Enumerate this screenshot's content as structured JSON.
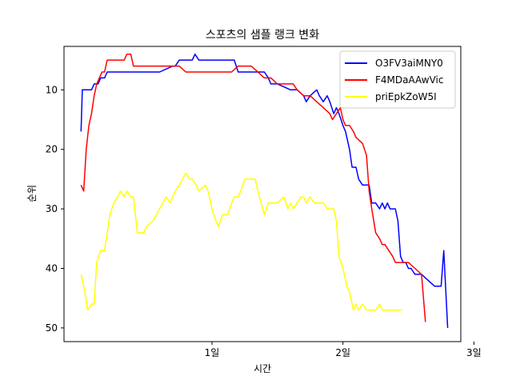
{
  "chart_data": {
    "type": "line",
    "title": "스포츠의 샘플 랭크 변화",
    "xlabel": "시간",
    "ylabel": "순위",
    "xlim": [
      -0.13,
      2.9
    ],
    "ylim": [
      52.3,
      2.7
    ],
    "y_inverted": true,
    "x_unit": "days",
    "x_ticks": [
      {
        "value": 1,
        "label": "1일"
      },
      {
        "value": 2,
        "label": "2일"
      },
      {
        "value": 3,
        "label": "3일"
      }
    ],
    "y_ticks": [
      {
        "value": 10,
        "label": "10"
      },
      {
        "value": 20,
        "label": "20"
      },
      {
        "value": 30,
        "label": "30"
      },
      {
        "value": 40,
        "label": "40"
      },
      {
        "value": 50,
        "label": "50"
      }
    ],
    "grid": false,
    "legend_position": "top-right",
    "series": [
      {
        "name": "O3FV3aiMNY0",
        "color": "#0000ff",
        "x": [
          0.0,
          0.01,
          0.03,
          0.08,
          0.1,
          0.13,
          0.15,
          0.18,
          0.2,
          0.3,
          0.5,
          0.6,
          0.7,
          0.72,
          0.75,
          0.8,
          0.85,
          0.87,
          0.9,
          1.0,
          1.1,
          1.17,
          1.2,
          1.3,
          1.4,
          1.43,
          1.45,
          1.5,
          1.6,
          1.65,
          1.7,
          1.72,
          1.75,
          1.8,
          1.82,
          1.85,
          1.88,
          1.9,
          1.93,
          1.95,
          1.97,
          2.0,
          2.02,
          2.05,
          2.07,
          2.1,
          2.12,
          2.15,
          2.2,
          2.22,
          2.25,
          2.28,
          2.3,
          2.32,
          2.34,
          2.36,
          2.4,
          2.42,
          2.44,
          2.46,
          2.48,
          2.5,
          2.52,
          2.55,
          2.6,
          2.65,
          2.7,
          2.75,
          2.77,
          2.8
        ],
        "values": [
          17,
          10,
          10,
          10,
          9,
          9,
          8,
          8,
          7,
          7,
          7,
          7,
          6,
          6,
          5,
          5,
          5,
          4,
          5,
          5,
          5,
          5,
          7,
          7,
          7,
          8,
          9,
          9,
          10,
          10,
          11,
          12,
          11,
          10,
          11,
          12,
          11,
          12,
          14,
          13,
          14,
          16,
          17,
          20,
          23,
          23,
          25,
          26,
          26,
          29,
          29,
          30,
          29,
          30,
          29,
          30,
          30,
          32,
          38,
          39,
          39,
          40,
          40,
          41,
          41,
          42,
          43,
          43,
          37,
          50
        ]
      },
      {
        "name": "F4MDaAAwVic",
        "color": "#ff0000",
        "x": [
          0.0,
          0.02,
          0.04,
          0.06,
          0.08,
          0.1,
          0.12,
          0.14,
          0.16,
          0.18,
          0.2,
          0.25,
          0.3,
          0.33,
          0.35,
          0.38,
          0.4,
          0.5,
          0.6,
          0.7,
          0.75,
          0.8,
          0.9,
          1.0,
          1.1,
          1.15,
          1.2,
          1.3,
          1.35,
          1.4,
          1.45,
          1.5,
          1.6,
          1.62,
          1.65,
          1.7,
          1.75,
          1.8,
          1.85,
          1.9,
          1.92,
          1.95,
          1.98,
          2.0,
          2.02,
          2.05,
          2.08,
          2.1,
          2.15,
          2.18,
          2.2,
          2.22,
          2.25,
          2.28,
          2.3,
          2.32,
          2.35,
          2.38,
          2.4,
          2.45,
          2.5,
          2.55,
          2.6,
          2.63
        ],
        "values": [
          26,
          27,
          20,
          16,
          14,
          11,
          9,
          8,
          7,
          7,
          5,
          5,
          5,
          5,
          4,
          4,
          6,
          6,
          6,
          6,
          6,
          7,
          7,
          7,
          7,
          7,
          6,
          6,
          7,
          8,
          8,
          9,
          9,
          9,
          10,
          11,
          11,
          12,
          13,
          14,
          15,
          14,
          13,
          15,
          16,
          16,
          17,
          18,
          19,
          21,
          27,
          30,
          34,
          35,
          36,
          36,
          37,
          38,
          39,
          39,
          39,
          40,
          41,
          49
        ]
      },
      {
        "name": "priEpkZoW5I",
        "color": "#ffff00",
        "x": [
          0.0,
          0.03,
          0.05,
          0.08,
          0.1,
          0.12,
          0.15,
          0.18,
          0.2,
          0.22,
          0.25,
          0.28,
          0.3,
          0.33,
          0.35,
          0.38,
          0.4,
          0.43,
          0.45,
          0.48,
          0.5,
          0.55,
          0.6,
          0.65,
          0.68,
          0.7,
          0.72,
          0.75,
          0.8,
          0.83,
          0.85,
          0.88,
          0.9,
          0.95,
          0.97,
          1.0,
          1.03,
          1.05,
          1.08,
          1.1,
          1.12,
          1.15,
          1.17,
          1.2,
          1.22,
          1.25,
          1.28,
          1.3,
          1.33,
          1.35,
          1.4,
          1.43,
          1.45,
          1.47,
          1.5,
          1.55,
          1.58,
          1.6,
          1.62,
          1.65,
          1.68,
          1.7,
          1.72,
          1.75,
          1.78,
          1.8,
          1.82,
          1.85,
          1.88,
          1.9,
          1.93,
          1.95,
          1.97,
          2.0,
          2.03,
          2.05,
          2.08,
          2.1,
          2.12,
          2.15,
          2.18,
          2.2,
          2.25,
          2.28,
          2.3,
          2.35,
          2.4,
          2.45
        ],
        "values": [
          41,
          44,
          47,
          46,
          46,
          39,
          37,
          37,
          34,
          31,
          29,
          28,
          27,
          28,
          27,
          28,
          28,
          34,
          34,
          34,
          33,
          32,
          30,
          28,
          29,
          28,
          27,
          26,
          24,
          25,
          25,
          26,
          27,
          26,
          27,
          30,
          32,
          33,
          31,
          31,
          31,
          29,
          28,
          28,
          27,
          25,
          25,
          25,
          25,
          27,
          31,
          29,
          29,
          29,
          29,
          28,
          30,
          29,
          30,
          29,
          28,
          28,
          29,
          28,
          29,
          29,
          29,
          29,
          30,
          30,
          30,
          32,
          38,
          40,
          43,
          44,
          47,
          46,
          47,
          46,
          47,
          47,
          47,
          46,
          47,
          47,
          47,
          47
        ]
      }
    ]
  }
}
